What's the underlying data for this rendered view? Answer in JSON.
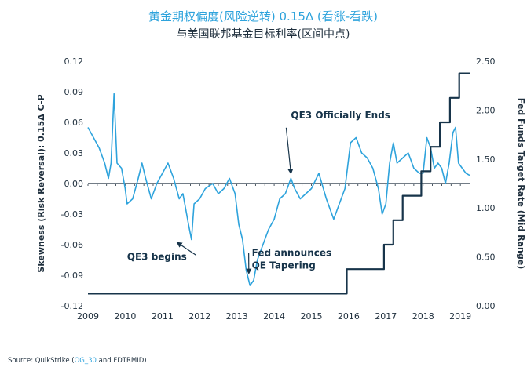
{
  "chart_data": {
    "type": "line",
    "title": "黄金期权偏度(风险逆转) 0.15Δ (看涨-看跌)",
    "subtitle": "与美国联邦基金目标利率(区间中点)",
    "y_left_label": "Skewness (Risk Reversal): 0.15Δ C-P",
    "y_right_label": "Fed Funds Target Rate (Mid Range)",
    "xlim": [
      2009,
      2019.25
    ],
    "y_left_lim": [
      -0.12,
      0.12
    ],
    "y_right_lim": [
      0,
      2.5
    ],
    "x_ticks": [
      "2009",
      "2010",
      "2011",
      "2012",
      "2013",
      "2014",
      "2015",
      "2016",
      "2017",
      "2018",
      "2019"
    ],
    "y_left_ticks": [
      "0.12",
      "0.09",
      "0.06",
      "0.03",
      "0.00",
      "-0.03",
      "-0.06",
      "-0.09",
      "-0.12"
    ],
    "y_right_ticks": [
      "2.50",
      "2.00",
      "1.50",
      "1.00",
      "0.50",
      "0.00"
    ],
    "grid": false,
    "legend": false,
    "series": [
      {
        "axis": "left",
        "color": "#2ea3dc",
        "points": [
          [
            2009.0,
            0.055
          ],
          [
            2009.15,
            0.045
          ],
          [
            2009.3,
            0.035
          ],
          [
            2009.45,
            0.02
          ],
          [
            2009.55,
            0.005
          ],
          [
            2009.62,
            0.02
          ],
          [
            2009.7,
            0.088
          ],
          [
            2009.78,
            0.02
          ],
          [
            2009.9,
            0.015
          ],
          [
            2010.0,
            -0.005
          ],
          [
            2010.05,
            -0.02
          ],
          [
            2010.2,
            -0.015
          ],
          [
            2010.35,
            0.005
          ],
          [
            2010.45,
            0.02
          ],
          [
            2010.55,
            0.005
          ],
          [
            2010.7,
            -0.015
          ],
          [
            2010.85,
            0.0
          ],
          [
            2011.0,
            0.01
          ],
          [
            2011.15,
            0.02
          ],
          [
            2011.3,
            0.005
          ],
          [
            2011.45,
            -0.015
          ],
          [
            2011.55,
            -0.01
          ],
          [
            2011.7,
            -0.04
          ],
          [
            2011.78,
            -0.055
          ],
          [
            2011.85,
            -0.02
          ],
          [
            2012.0,
            -0.015
          ],
          [
            2012.15,
            -0.005
          ],
          [
            2012.35,
            0.0
          ],
          [
            2012.5,
            -0.01
          ],
          [
            2012.65,
            -0.005
          ],
          [
            2012.8,
            0.005
          ],
          [
            2012.95,
            -0.01
          ],
          [
            2013.05,
            -0.04
          ],
          [
            2013.15,
            -0.055
          ],
          [
            2013.25,
            -0.085
          ],
          [
            2013.35,
            -0.1
          ],
          [
            2013.45,
            -0.095
          ],
          [
            2013.55,
            -0.075
          ],
          [
            2013.7,
            -0.06
          ],
          [
            2013.85,
            -0.045
          ],
          [
            2014.0,
            -0.035
          ],
          [
            2014.15,
            -0.015
          ],
          [
            2014.3,
            -0.01
          ],
          [
            2014.45,
            0.005
          ],
          [
            2014.55,
            -0.005
          ],
          [
            2014.7,
            -0.015
          ],
          [
            2014.85,
            -0.01
          ],
          [
            2015.0,
            -0.005
          ],
          [
            2015.2,
            0.01
          ],
          [
            2015.4,
            -0.015
          ],
          [
            2015.6,
            -0.035
          ],
          [
            2015.75,
            -0.02
          ],
          [
            2015.9,
            -0.005
          ],
          [
            2016.05,
            0.04
          ],
          [
            2016.2,
            0.045
          ],
          [
            2016.35,
            0.03
          ],
          [
            2016.5,
            0.025
          ],
          [
            2016.65,
            0.015
          ],
          [
            2016.8,
            -0.005
          ],
          [
            2016.9,
            -0.03
          ],
          [
            2017.0,
            -0.02
          ],
          [
            2017.1,
            0.02
          ],
          [
            2017.2,
            0.04
          ],
          [
            2017.3,
            0.02
          ],
          [
            2017.45,
            0.025
          ],
          [
            2017.6,
            0.03
          ],
          [
            2017.75,
            0.015
          ],
          [
            2017.9,
            0.01
          ],
          [
            2018.0,
            0.01
          ],
          [
            2018.1,
            0.045
          ],
          [
            2018.2,
            0.035
          ],
          [
            2018.3,
            0.015
          ],
          [
            2018.4,
            0.02
          ],
          [
            2018.5,
            0.015
          ],
          [
            2018.6,
            0.0
          ],
          [
            2018.7,
            0.02
          ],
          [
            2018.8,
            0.05
          ],
          [
            2018.87,
            0.055
          ],
          [
            2018.95,
            0.02
          ],
          [
            2019.05,
            0.015
          ],
          [
            2019.15,
            0.01
          ],
          [
            2019.25,
            0.008
          ]
        ]
      },
      {
        "axis": "right",
        "color": "#17344a",
        "points": [
          [
            2009.0,
            0.125
          ],
          [
            2015.95,
            0.125
          ],
          [
            2015.95,
            0.375
          ],
          [
            2016.95,
            0.375
          ],
          [
            2016.95,
            0.625
          ],
          [
            2017.2,
            0.625
          ],
          [
            2017.2,
            0.875
          ],
          [
            2017.45,
            0.875
          ],
          [
            2017.45,
            1.125
          ],
          [
            2017.95,
            1.125
          ],
          [
            2017.95,
            1.375
          ],
          [
            2018.2,
            1.375
          ],
          [
            2018.2,
            1.625
          ],
          [
            2018.45,
            1.625
          ],
          [
            2018.45,
            1.875
          ],
          [
            2018.72,
            1.875
          ],
          [
            2018.72,
            2.125
          ],
          [
            2018.97,
            2.125
          ],
          [
            2018.97,
            2.375
          ],
          [
            2019.25,
            2.375
          ]
        ]
      }
    ],
    "annotations": [
      {
        "text": "QE3 Officially Ends",
        "x": 2014.45,
        "y": 0.064,
        "arrow_to": [
          2014.45,
          0.01
        ]
      },
      {
        "text": "QE3 begins",
        "x": 2010.05,
        "y": -0.075,
        "arrow_to": [
          2011.4,
          -0.058
        ]
      },
      {
        "text": "Fed announces\nQE Tapering",
        "x": 2013.4,
        "y": -0.071,
        "arrow_to": [
          2013.32,
          -0.088
        ]
      }
    ]
  },
  "source": {
    "prefix": "Source: QuikStrike (",
    "link": "OG_30",
    "suffix": " and FDTRMID)"
  }
}
